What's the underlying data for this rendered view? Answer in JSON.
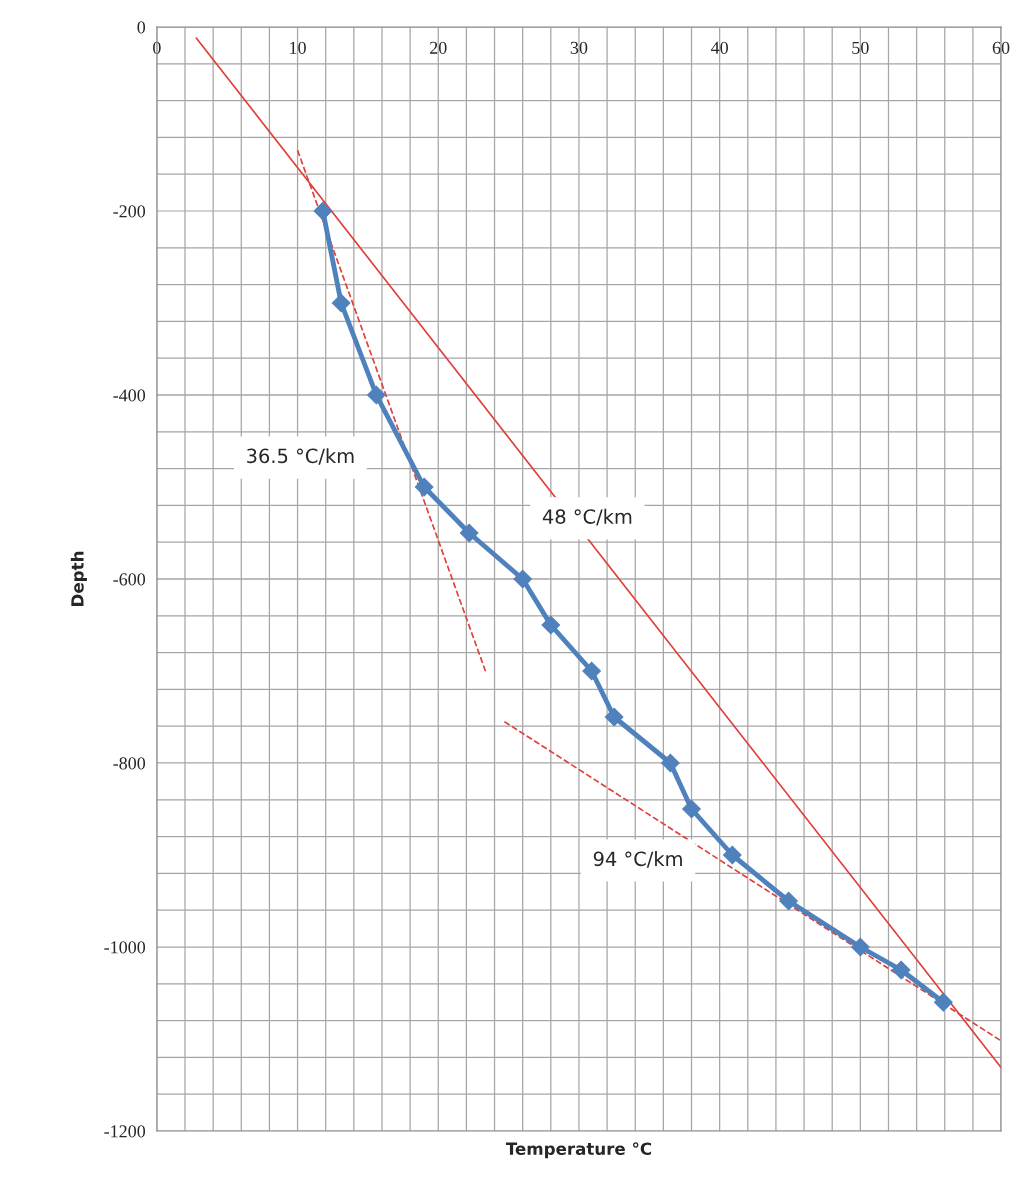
{
  "chart_data": {
    "type": "line",
    "xlabel": "Temperature °C",
    "ylabel": "Depth",
    "xlim": [
      0,
      60
    ],
    "ylim": [
      -1200,
      0
    ],
    "xticks": [
      0,
      {
        "value": 2,
        "label": null
      },
      {
        "value": 4,
        "label": null
      },
      {
        "value": 6,
        "label": null
      },
      {
        "value": 8,
        "label": null
      },
      10,
      {
        "value": 12,
        "label": null
      },
      {
        "value": 14,
        "label": null
      },
      {
        "value": 16,
        "label": null
      },
      {
        "value": 18,
        "label": null
      },
      20,
      {
        "value": 22,
        "label": null
      },
      {
        "value": 24,
        "label": null
      },
      {
        "value": 26,
        "label": null
      },
      {
        "value": 28,
        "label": null
      },
      30,
      {
        "value": 32,
        "label": null
      },
      {
        "value": 34,
        "label": null
      },
      {
        "value": 36,
        "label": null
      },
      {
        "value": 38,
        "label": null
      },
      40,
      {
        "value": 42,
        "label": null
      },
      {
        "value": 44,
        "label": null
      },
      {
        "value": 46,
        "label": null
      },
      {
        "value": 48,
        "label": null
      },
      50,
      {
        "value": 52,
        "label": null
      },
      {
        "value": 54,
        "label": null
      },
      {
        "value": 56,
        "label": null
      },
      {
        "value": 58,
        "label": null
      },
      60
    ],
    "yticks": [
      -1200,
      {
        "value": -1160,
        "label": null
      },
      {
        "value": -1120,
        "label": null
      },
      {
        "value": -1080,
        "label": null
      },
      {
        "value": -1040,
        "label": null
      },
      -1000,
      {
        "value": -960,
        "label": null
      },
      {
        "value": -920,
        "label": null
      },
      {
        "value": -880,
        "label": null
      },
      {
        "value": -840,
        "label": null
      },
      -800,
      {
        "value": -760,
        "label": null
      },
      {
        "value": -720,
        "label": null
      },
      {
        "value": -680,
        "label": null
      },
      {
        "value": -640,
        "label": null
      },
      -600,
      {
        "value": -560,
        "label": null
      },
      {
        "value": -520,
        "label": null
      },
      {
        "value": -480,
        "label": null
      },
      {
        "value": -440,
        "label": null
      },
      -400,
      {
        "value": -360,
        "label": null
      },
      {
        "value": -320,
        "label": null
      },
      {
        "value": -280,
        "label": null
      },
      {
        "value": -240,
        "label": null
      },
      -200,
      {
        "value": -160,
        "label": null
      },
      {
        "value": -120,
        "label": null
      },
      {
        "value": -80,
        "label": null
      },
      {
        "value": -40,
        "label": null
      },
      0
    ],
    "grid": true,
    "legend": false,
    "series": [
      {
        "color": "#4f81bd",
        "marker": "diamond",
        "line_style": "solid",
        "x": [
          11.8,
          13.1,
          15.6,
          19.0,
          22.2,
          26.0,
          28.0,
          30.9,
          32.5,
          36.5,
          38.0,
          40.9,
          44.9,
          50.0,
          52.9,
          55.9
        ],
        "values": [
          -200,
          -300,
          -400,
          -500,
          -550,
          -600,
          -650,
          -700,
          -750,
          -800,
          -850,
          -900,
          -950,
          -1000,
          -1025,
          -1060
        ]
      },
      {
        "color": "#e0403a",
        "marker": "none",
        "line_style": "solid",
        "x": [
          2.8,
          60
        ],
        "values": [
          -12,
          -1131
        ]
      },
      {
        "color": "#e0403a",
        "marker": "none",
        "line_style": "dashed",
        "x": [
          10.0,
          23.4
        ],
        "values": [
          -134,
          -702
        ]
      },
      {
        "color": "#e0403a",
        "marker": "none",
        "line_style": "dashed",
        "x": [
          24.7,
          60
        ],
        "values": [
          -755,
          -1102
        ]
      }
    ],
    "annotations": [
      "36.5 °C/km",
      "48 °C/km",
      "94 °C/km"
    ]
  }
}
